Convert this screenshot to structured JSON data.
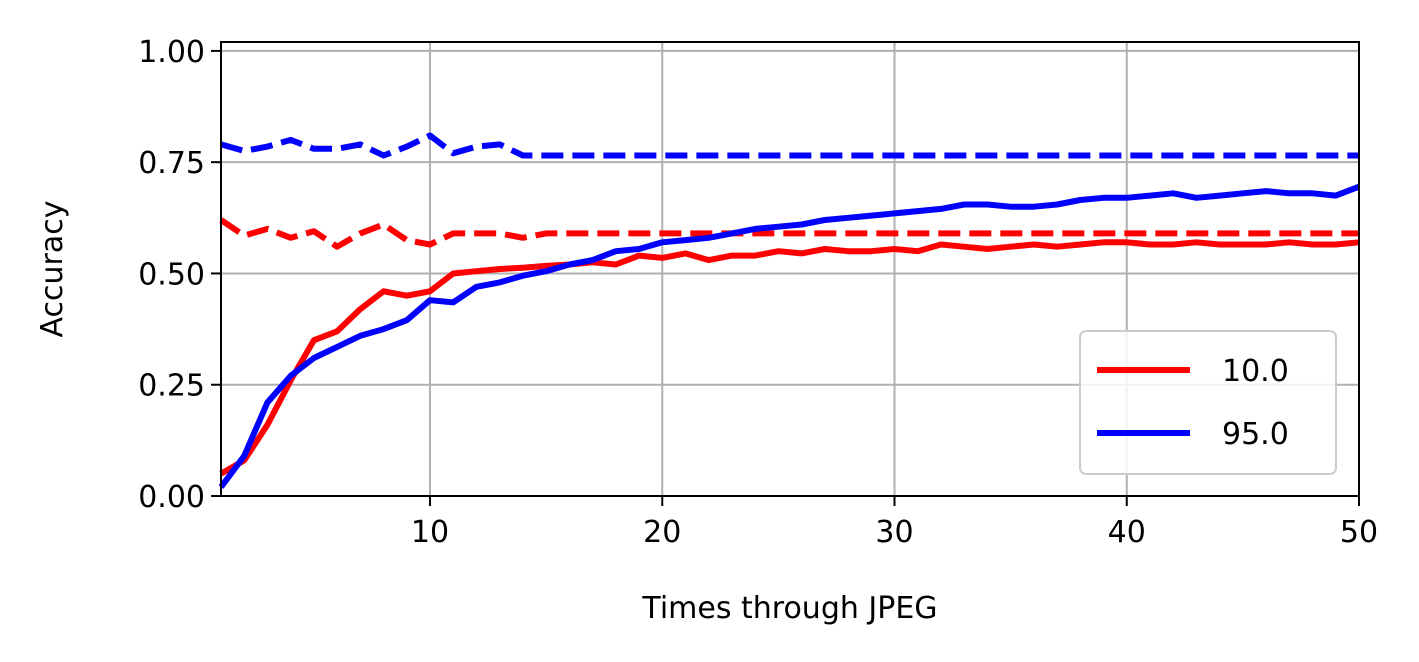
{
  "chart_data": {
    "type": "line",
    "xlabel": "Times through JPEG",
    "ylabel": "Accuracy",
    "xlim": [
      1,
      50
    ],
    "ylim": [
      0,
      1.02
    ],
    "x_ticks": [
      10,
      20,
      30,
      40,
      50
    ],
    "x_tick_labels": [
      "10",
      "20",
      "30",
      "40",
      "50"
    ],
    "y_ticks": [
      0,
      0.25,
      0.5,
      0.75,
      1.0
    ],
    "y_tick_labels": [
      "0.00",
      "0.25",
      "0.50",
      "0.75",
      "1.00"
    ],
    "grid": true,
    "legend": {
      "position": "lower-right",
      "entries": [
        "10.0",
        "95.0"
      ]
    },
    "x": [
      1,
      2,
      3,
      4,
      5,
      6,
      7,
      8,
      9,
      10,
      11,
      12,
      13,
      14,
      15,
      16,
      17,
      18,
      19,
      20,
      21,
      22,
      23,
      24,
      25,
      26,
      27,
      28,
      29,
      30,
      31,
      32,
      33,
      34,
      35,
      36,
      37,
      38,
      39,
      40,
      41,
      42,
      43,
      44,
      45,
      46,
      47,
      48,
      49,
      50
    ],
    "series": [
      {
        "name": "10.0",
        "color": "#ff0000",
        "style": "solid",
        "values": [
          0.05,
          0.08,
          0.16,
          0.26,
          0.35,
          0.37,
          0.42,
          0.46,
          0.45,
          0.46,
          0.5,
          0.505,
          0.51,
          0.513,
          0.517,
          0.52,
          0.525,
          0.52,
          0.54,
          0.535,
          0.545,
          0.53,
          0.54,
          0.54,
          0.55,
          0.545,
          0.555,
          0.55,
          0.55,
          0.555,
          0.55,
          0.565,
          0.56,
          0.555,
          0.56,
          0.565,
          0.56,
          0.565,
          0.57,
          0.57,
          0.565,
          0.565,
          0.57,
          0.565,
          0.565,
          0.565,
          0.57,
          0.565,
          0.565,
          0.57
        ]
      },
      {
        "name": "",
        "color": "#ff0000",
        "style": "dashed",
        "values": [
          0.62,
          0.585,
          0.6,
          0.58,
          0.595,
          0.56,
          0.59,
          0.61,
          0.575,
          0.565,
          0.59,
          0.59,
          0.59,
          0.58,
          0.59,
          0.59,
          0.59,
          0.59,
          0.59,
          0.59,
          0.59,
          0.59,
          0.59,
          0.59,
          0.59,
          0.59,
          0.59,
          0.59,
          0.59,
          0.59,
          0.59,
          0.59,
          0.59,
          0.59,
          0.59,
          0.59,
          0.59,
          0.59,
          0.59,
          0.59,
          0.59,
          0.59,
          0.59,
          0.59,
          0.59,
          0.59,
          0.59,
          0.59,
          0.59,
          0.59
        ]
      },
      {
        "name": "95.0",
        "color": "#0000ff",
        "style": "solid",
        "values": [
          0.02,
          0.09,
          0.21,
          0.27,
          0.31,
          0.335,
          0.36,
          0.375,
          0.395,
          0.44,
          0.435,
          0.47,
          0.48,
          0.495,
          0.505,
          0.52,
          0.53,
          0.55,
          0.555,
          0.57,
          0.575,
          0.58,
          0.59,
          0.6,
          0.605,
          0.61,
          0.62,
          0.625,
          0.63,
          0.635,
          0.64,
          0.645,
          0.655,
          0.655,
          0.65,
          0.65,
          0.655,
          0.665,
          0.67,
          0.67,
          0.675,
          0.68,
          0.67,
          0.675,
          0.68,
          0.685,
          0.68,
          0.68,
          0.675,
          0.695
        ]
      },
      {
        "name": "",
        "color": "#0000ff",
        "style": "dashed",
        "values": [
          0.79,
          0.775,
          0.785,
          0.8,
          0.78,
          0.78,
          0.79,
          0.765,
          0.785,
          0.81,
          0.77,
          0.785,
          0.79,
          0.765,
          0.765,
          0.765,
          0.765,
          0.765,
          0.765,
          0.765,
          0.765,
          0.765,
          0.765,
          0.765,
          0.765,
          0.765,
          0.765,
          0.765,
          0.765,
          0.765,
          0.765,
          0.765,
          0.765,
          0.765,
          0.765,
          0.765,
          0.765,
          0.765,
          0.765,
          0.765,
          0.765,
          0.765,
          0.765,
          0.765,
          0.765,
          0.765,
          0.765,
          0.765,
          0.765,
          0.765
        ]
      }
    ]
  }
}
